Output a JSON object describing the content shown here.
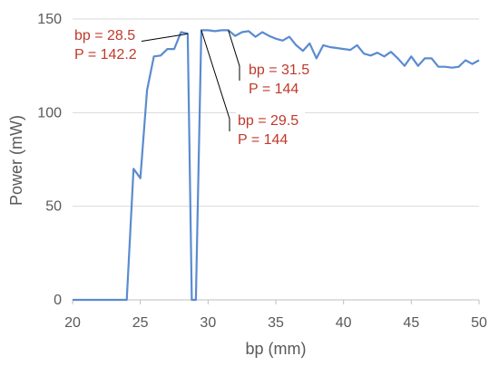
{
  "chart_data": {
    "type": "line",
    "xlabel": "bp (mm)",
    "ylabel": "Power (mW)",
    "xlim": [
      20,
      50
    ],
    "ylim": [
      0,
      150
    ],
    "xticks": [
      20,
      25,
      30,
      35,
      40,
      45,
      50
    ],
    "yticks": [
      0,
      50,
      100,
      150
    ],
    "grid": "horizontal",
    "legend": "none",
    "series": [
      {
        "color": "#5b8bd0",
        "points": [
          [
            20,
            0
          ],
          [
            24,
            0
          ],
          [
            24.5,
            70
          ],
          [
            25,
            65
          ],
          [
            25.5,
            112
          ],
          [
            26,
            130
          ],
          [
            26.5,
            130.5
          ],
          [
            27,
            134
          ],
          [
            27.5,
            134
          ],
          [
            28,
            143
          ],
          [
            28.5,
            142.2
          ],
          [
            28.8,
            0
          ],
          [
            29.1,
            0
          ],
          [
            29.5,
            144
          ],
          [
            30,
            144
          ],
          [
            30.5,
            143.5
          ],
          [
            31,
            144
          ],
          [
            31.5,
            144
          ],
          [
            32,
            141
          ],
          [
            32.5,
            143
          ],
          [
            33,
            143.5
          ],
          [
            33.5,
            140.5
          ],
          [
            34,
            143
          ],
          [
            34.5,
            141
          ],
          [
            35,
            139.5
          ],
          [
            35.5,
            138.5
          ],
          [
            36,
            140.5
          ],
          [
            36.5,
            136
          ],
          [
            37,
            133
          ],
          [
            37.5,
            137
          ],
          [
            38,
            129
          ],
          [
            38.5,
            136
          ],
          [
            39,
            135
          ],
          [
            39.5,
            134.5
          ],
          [
            40,
            134
          ],
          [
            40.5,
            133.5
          ],
          [
            41,
            136
          ],
          [
            41.5,
            131.5
          ],
          [
            42,
            130.5
          ],
          [
            42.5,
            132
          ],
          [
            43,
            130
          ],
          [
            43.5,
            132.5
          ],
          [
            44,
            129
          ],
          [
            44.5,
            125
          ],
          [
            45,
            130
          ],
          [
            45.5,
            125
          ],
          [
            46,
            129
          ],
          [
            46.5,
            129
          ],
          [
            47,
            124.5
          ],
          [
            47.5,
            124.5
          ],
          [
            48,
            124
          ],
          [
            48.5,
            124.5
          ],
          [
            49,
            128
          ],
          [
            49.5,
            126
          ],
          [
            50,
            128
          ]
        ]
      }
    ],
    "annotations": [
      {
        "lines": [
          "bp = 28.5",
          "P = 142.2"
        ],
        "point": [
          28.5,
          142.2
        ]
      },
      {
        "lines": [
          "bp = 31.5",
          "P = 144"
        ],
        "point": [
          31.5,
          144
        ]
      },
      {
        "lines": [
          "bp = 29.5",
          "P = 144"
        ],
        "point": [
          29.5,
          144
        ]
      }
    ]
  }
}
